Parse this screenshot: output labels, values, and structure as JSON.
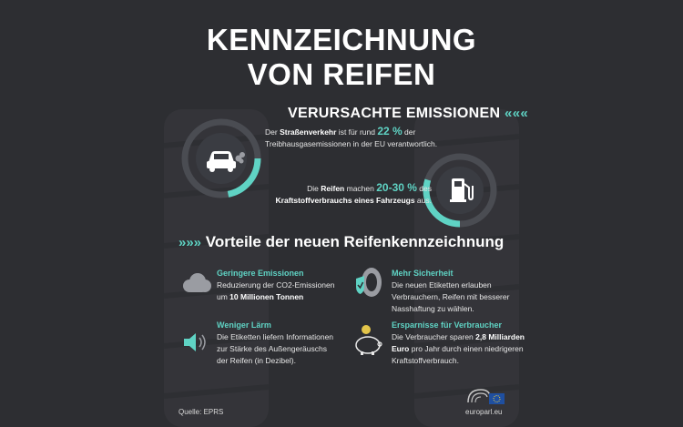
{
  "title": {
    "line1": "KENNZEICHNUNG",
    "line2": "VON REIFEN"
  },
  "emissions": {
    "heading": "VERURSACHTE EMISSIONEN",
    "chevrons": "«««",
    "stat1": {
      "pre": "Der ",
      "bold": "Straßenverkehr",
      "mid": " ist für rund ",
      "value": "22 %",
      "post": " der Treibhausgasemissionen in der EU verantwortlich.",
      "share": 0.22
    },
    "stat2": {
      "pre": "Die ",
      "bold": "Reifen",
      "mid": " machen ",
      "value": "20-30 %",
      "post": " des ",
      "bold2": "Kraftstoffverbrauchs eines Fahrzeugs",
      "end": " aus.",
      "share": 0.3
    }
  },
  "benefits": {
    "heading": "Vorteile der neuen Reifenkennzeichnung",
    "chevrons": "»»»",
    "items": [
      {
        "title": "Geringere Emissionen",
        "t1": "Reduzierung der CO2-Emissionen um ",
        "bold": "10 Millionen Tonnen",
        "t2": ""
      },
      {
        "title": "Mehr Sicherheit",
        "t1": "Die neuen Etiketten erlauben Verbrauchern, Reifen mit besserer Nasshaftung zu wählen.",
        "bold": "",
        "t2": ""
      },
      {
        "title": "Weniger Lärm",
        "t1": "Die Etiketten liefern Informationen zur Stärke des Außengeräuschs der Reifen (in Dezibel).",
        "bold": "",
        "t2": ""
      },
      {
        "title": "Ersparnisse für Verbraucher",
        "t1": "Die Verbraucher sparen ",
        "bold": "2,8 Milliarden Euro",
        "t2": " pro Jahr durch einen niedrigeren Kraftstoffverbrauch."
      }
    ]
  },
  "footer": {
    "source": "Quelle: EPRS",
    "brand": "europarl.eu"
  },
  "icons": [
    "car-icon",
    "fuel-pump-icon",
    "cloud-icon",
    "tyre-shield-icon",
    "speaker-icon",
    "piggy-bank-icon",
    "parliament-logo-icon"
  ],
  "colors": {
    "background": "#2d2e32",
    "accent": "#5fd3c4",
    "text": "#ffffff"
  }
}
